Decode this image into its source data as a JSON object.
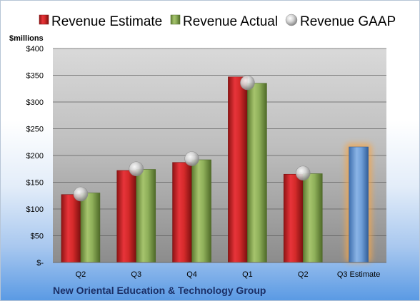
{
  "chart_data": {
    "type": "bar",
    "unit_label": "$millions",
    "company": "New Oriental Education & Technology Group",
    "categories": [
      "Q2",
      "Q3",
      "Q4",
      "Q1",
      "Q2",
      "Q3 Estimate"
    ],
    "yticks": [
      "$-",
      "$50",
      "$100",
      "$150",
      "$200",
      "$250",
      "$300",
      "$350",
      "$400"
    ],
    "ylim": [
      0,
      400
    ],
    "grid": true,
    "legend_position": "top",
    "series": [
      {
        "name": "Revenue Estimate",
        "values": [
          127,
          172,
          187,
          347,
          165,
          216
        ],
        "color": "#d42a2a"
      },
      {
        "name": "Revenue Actual",
        "values": [
          130,
          174,
          192,
          335,
          166,
          null
        ],
        "color": "#8fb05a"
      },
      {
        "name": "Revenue GAAP",
        "values": [
          128,
          175,
          194,
          336,
          167,
          null
        ],
        "color": "#c0c0c0"
      }
    ],
    "estimate_color": "#6f9fd8",
    "highlight_color": "#f5a64a"
  }
}
